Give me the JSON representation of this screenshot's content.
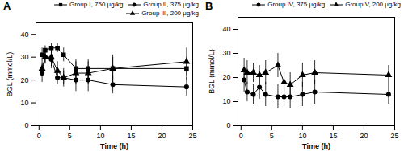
{
  "chart_data": [
    {
      "type": "line",
      "title": "A",
      "xlabel": "Time (h)",
      "ylabel": "BGL (mmol/L)",
      "xlim": [
        -0.5,
        25
      ],
      "ylim": [
        0,
        45
      ],
      "xticks": [
        0,
        5,
        10,
        15,
        20,
        25
      ],
      "yticks": [
        0,
        10,
        20,
        30,
        40
      ],
      "legend": "upper right",
      "series": [
        {
          "name": "Group I, 750 μg/kg",
          "color": "#000000",
          "marker": "square",
          "x": [
            0.5,
            1,
            2,
            3,
            4,
            6,
            8,
            12,
            24
          ],
          "values": [
            31,
            33,
            34,
            34,
            31,
            25,
            25,
            25,
            25
          ],
          "yerr": [
            3,
            2,
            2,
            2,
            3,
            4,
            4,
            5,
            5
          ]
        },
        {
          "name": "Group II, 375 μg/kg",
          "color": "#000000",
          "marker": "circle",
          "x": [
            0.5,
            1,
            2,
            3,
            4,
            6,
            8,
            12,
            24
          ],
          "values": [
            23,
            30,
            29,
            21,
            21,
            20,
            20,
            18,
            17
          ],
          "yerr": [
            4,
            3,
            4,
            3,
            3,
            5,
            5,
            4,
            4
          ]
        },
        {
          "name": "Group III, 200 μg/kg",
          "color": "#000000",
          "marker": "triangle",
          "x": [
            0.5,
            1,
            2,
            3,
            4,
            6,
            8,
            12,
            24
          ],
          "values": [
            25,
            30,
            30,
            24,
            21,
            23,
            23,
            25,
            28
          ],
          "yerr": [
            3,
            3,
            4,
            4,
            4,
            5,
            5,
            6,
            6
          ]
        }
      ]
    },
    {
      "type": "line",
      "title": "B",
      "xlabel": "Time (h)",
      "ylabel": "BGL (mmol/L)",
      "xlim": [
        -0.5,
        25
      ],
      "ylim": [
        0,
        45
      ],
      "xticks": [
        0,
        5,
        10,
        15,
        20,
        25
      ],
      "yticks": [
        0,
        10,
        20,
        30,
        40
      ],
      "legend": "upper right",
      "series": [
        {
          "name": "Group IV, 375 μg/kg",
          "color": "#000000",
          "marker": "circle",
          "x": [
            0.5,
            1,
            2,
            3,
            4,
            6,
            7,
            8,
            10,
            12,
            24
          ],
          "values": [
            19,
            14,
            13,
            16,
            13,
            12,
            12,
            12,
            13,
            14,
            13
          ],
          "yerr": [
            5,
            4,
            4,
            5,
            5,
            5,
            4,
            5,
            5,
            5,
            4
          ]
        },
        {
          "name": "Group V, 200 μg/kg",
          "color": "#000000",
          "marker": "triangle",
          "x": [
            0.5,
            1,
            2,
            3,
            4,
            6,
            7,
            8,
            10,
            12,
            24
          ],
          "values": [
            23,
            22,
            22,
            21,
            22,
            25,
            18,
            17,
            21,
            22,
            21
          ],
          "yerr": [
            5,
            5,
            4,
            4,
            5,
            5,
            5,
            5,
            5,
            5,
            4
          ]
        }
      ]
    }
  ]
}
